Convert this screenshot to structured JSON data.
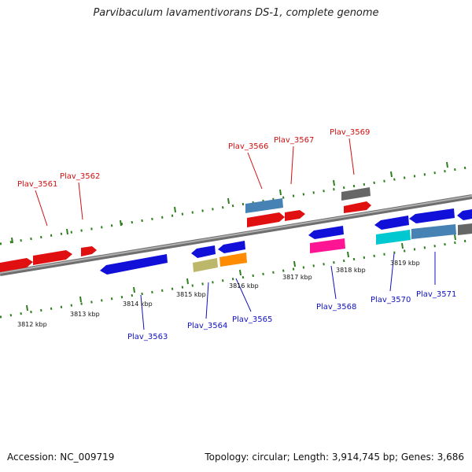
{
  "title": "Parvibaculum lavamentivorans DS-1, complete genome",
  "accession": "Accession: NC_009719",
  "summary": "Topology: circular; Length: 3,914,745 bp; Genes: 3,686",
  "colors": {
    "backbone": "#808080",
    "ticks": "#2e7d1e",
    "top_label": "#d11010",
    "bottom_label": "#1010c0"
  },
  "kbp_labels": [
    "3812 kbp",
    "3813 kbp",
    "3814 kbp",
    "3815 kbp",
    "3816 kbp",
    "3817 kbp",
    "3818 kbp",
    "3819 kbp"
  ],
  "genes_top": [
    {
      "label": "Plav_3561",
      "color": "#e01010"
    },
    {
      "label": "Plav_3562",
      "color": "#e01010"
    },
    {
      "label": "Plav_3566",
      "color": "#e01010"
    },
    {
      "label": "Plav_3567",
      "color": "#e01010"
    },
    {
      "label": "Plav_3569",
      "color": "#e01010"
    }
  ],
  "genes_bottom": [
    {
      "label": "Plav_3563",
      "color": "#1010d8"
    },
    {
      "label": "Plav_3564",
      "color": "#1010d8"
    },
    {
      "label": "Plav_3565",
      "color": "#1010d8"
    },
    {
      "label": "Plav_3568",
      "color": "#1010d8"
    },
    {
      "label": "Plav_3570",
      "color": "#1010d8"
    },
    {
      "label": "Plav_3571",
      "color": "#1010d8"
    }
  ]
}
